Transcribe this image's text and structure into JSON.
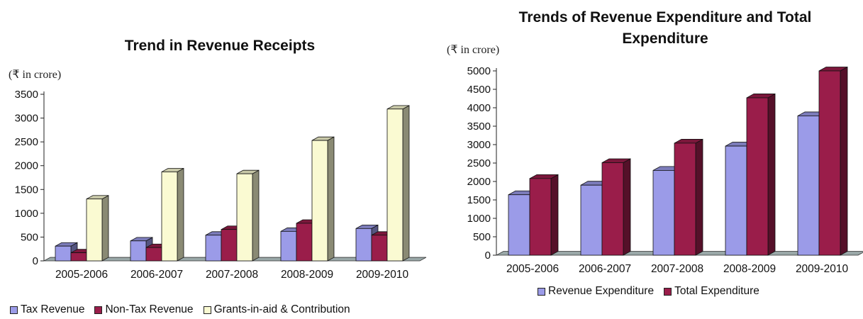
{
  "chart_data": [
    {
      "type": "bar",
      "title": "Trend in Revenue Receipts",
      "unit": "(₹ in crore)",
      "categories": [
        "2005-2006",
        "2006-2007",
        "2007-2008",
        "2008-2009",
        "2009-2010"
      ],
      "series": [
        {
          "name": "Tax Revenue",
          "color": "#9b9be8",
          "values": [
            310,
            420,
            540,
            620,
            680
          ]
        },
        {
          "name": "Non-Tax Revenue",
          "color": "#9a1d4a",
          "values": [
            170,
            280,
            660,
            790,
            540
          ]
        },
        {
          "name": "Grants-in-aid & Contribution",
          "color": "#fafad2",
          "values": [
            1300,
            1870,
            1830,
            2530,
            3190
          ]
        }
      ],
      "yticks": [
        0,
        500,
        1000,
        1500,
        2000,
        2500,
        3000,
        3500
      ],
      "ylim": [
        0,
        3500
      ],
      "grid": false,
      "legend_position": "bottom"
    },
    {
      "type": "bar",
      "title": "Trends of Revenue Expenditure and Total Expenditure",
      "unit": "(₹ in crore)",
      "categories": [
        "2005-2006",
        "2006-2007",
        "2007-2008",
        "2008-2009",
        "2009-2010"
      ],
      "series": [
        {
          "name": "Revenue Expenditure",
          "color": "#9b9be8",
          "values": [
            1640,
            1900,
            2300,
            2960,
            3780
          ]
        },
        {
          "name": "Total Expenditure",
          "color": "#9a1d4a",
          "values": [
            2080,
            2510,
            3040,
            4270,
            5000
          ]
        }
      ],
      "yticks": [
        0,
        500,
        1000,
        1500,
        2000,
        2500,
        3000,
        3500,
        4000,
        4500,
        5000
      ],
      "ylim": [
        0,
        5000
      ],
      "grid": false,
      "legend_position": "bottom"
    }
  ]
}
